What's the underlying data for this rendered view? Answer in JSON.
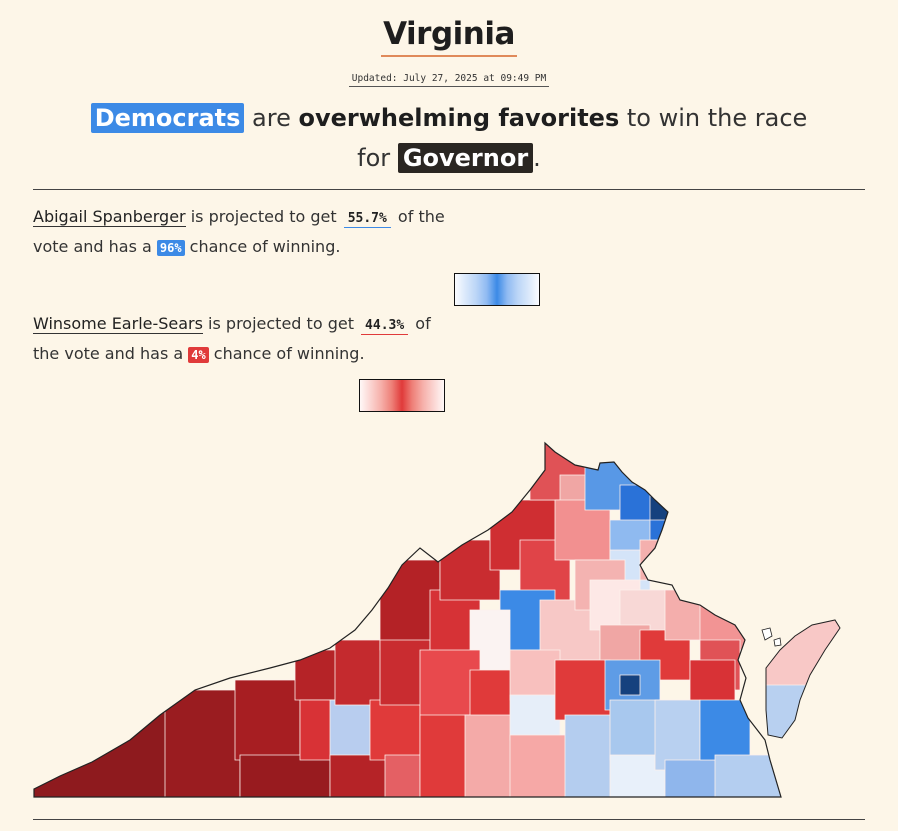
{
  "state": "Virginia",
  "updated": "Updated: July 27, 2025 at 09:49 PM",
  "headline": {
    "party": "Democrats",
    "pre": " are ",
    "strength": "overwhelming favorites",
    "mid": " to win the race",
    "for": "for ",
    "office": "Governor",
    "end": "."
  },
  "candidates": [
    {
      "name": "Abigail Spanberger",
      "text1": " is projected to get ",
      "vote": "55.7%",
      "text2": " of the vote and has a ",
      "chance": "96%",
      "text3": " chance of winning.",
      "party": "D",
      "color": "#3c8ae6"
    },
    {
      "name": "Winsome Earle-Sears",
      "text1": " is projected to get ",
      "vote": "44.3%",
      "text2": " of the vote and has a ",
      "chance": "4%",
      "text3": " chance of winning.",
      "party": "R",
      "color": "#e03a3a"
    }
  ],
  "colors": {
    "background": "#fdf6e8",
    "dem": "#3c8ae6",
    "rep": "#e03a3a",
    "governor_badge": "#2a2622"
  }
}
